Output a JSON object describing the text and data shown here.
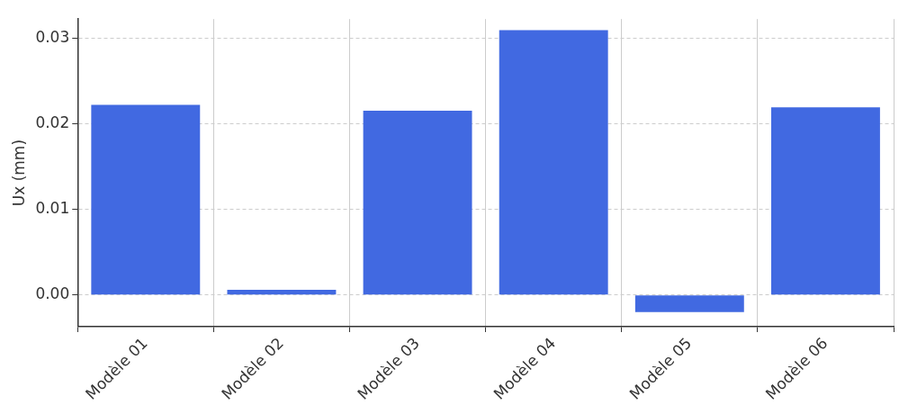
{
  "chart_data": {
    "type": "bar",
    "ylabel": "Ux (mm)",
    "categories": [
      "Modèle 01",
      "Modèle 02",
      "Modèle 03",
      "Modèle 04",
      "Modèle 05",
      "Modèle 06"
    ],
    "values": [
      0.0222,
      0.0006,
      0.0215,
      0.0309,
      -0.002,
      0.0219
    ],
    "color": "#4169e1",
    "ylim": [
      -0.0037,
      0.0322
    ],
    "yticks": [
      {
        "value": 0,
        "label": "0.00"
      },
      {
        "value": 0.01,
        "label": "0.01"
      },
      {
        "value": 0.02,
        "label": "0.02"
      },
      {
        "value": 0.03,
        "label": "0.03"
      }
    ],
    "grid": true
  }
}
